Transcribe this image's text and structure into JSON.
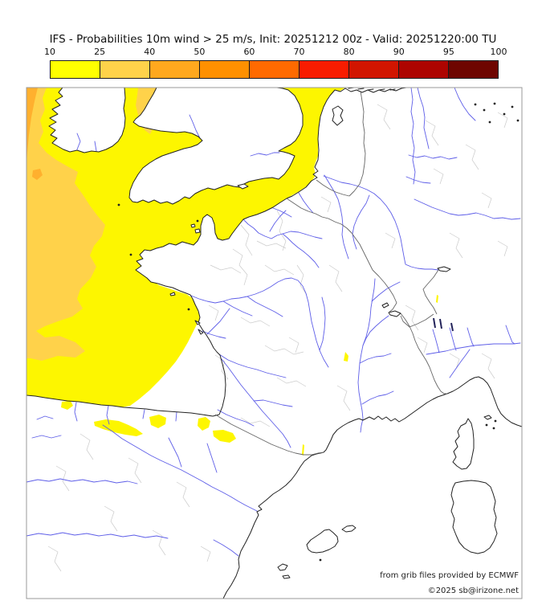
{
  "title": "IFS - Probabilities 10m wind > 25 m/s, Init: 20251212 00z - Valid: 20251220:00 TU",
  "colorbar": {
    "tick_labels": [
      "10",
      "25",
      "40",
      "50",
      "60",
      "70",
      "80",
      "90",
      "95",
      "100"
    ],
    "segments": [
      {
        "label": "10-25",
        "color": "#FFFF00"
      },
      {
        "label": "25-40",
        "color": "#FFD24A"
      },
      {
        "label": "40-50",
        "color": "#FFA81E"
      },
      {
        "label": "50-60",
        "color": "#FF9000"
      },
      {
        "label": "60-70",
        "color": "#FF6A00"
      },
      {
        "label": "70-80",
        "color": "#F81C00"
      },
      {
        "label": "80-90",
        "color": "#D11500"
      },
      {
        "label": "90-95",
        "color": "#AD0400"
      },
      {
        "label": "95-100",
        "color": "#6E0500"
      }
    ]
  },
  "map": {
    "attribution_line1": "from grib files provided by ECMWF",
    "attribution_line2": "©2025 sb@irizone.net",
    "colors": {
      "sea_prob_10_25": "#FDF600",
      "sea_prob_25_40": "#FFD24A",
      "sea_prob_40_50": "#FFB02E",
      "river": "#5E5EE8",
      "dark_lake": "#23235A",
      "coastline": "#222222",
      "country_border": "#666666",
      "admin_boundary": "#CBCBCB",
      "frame": "#999999",
      "land": "#FFFFFF"
    }
  },
  "chart_data": {
    "type": "heatmap",
    "title": "IFS - Probabilities 10m wind > 25 m/s, Init: 20251212 00z - Valid: 20251220:00 TU",
    "variable": "Probability of 10 m wind exceeding 25 m/s (%)",
    "model": "IFS (ECMWF)",
    "init": "20251212 00z",
    "valid": "20251220:00 TU",
    "legend_position": "top",
    "scale_bin_edges": [
      10,
      25,
      40,
      50,
      60,
      70,
      80,
      90,
      95,
      100
    ],
    "scale_colors": [
      "#FFFF00",
      "#FFD24A",
      "#FFA81E",
      "#FF9000",
      "#FF6A00",
      "#F81C00",
      "#D11500",
      "#AD0400",
      "#6E0500"
    ],
    "regions_depicted": [
      {
        "area": "Atlantic Ocean west of France, Bay of Biscay, English Channel, southern North Sea",
        "probability_pct": "10-25"
      },
      {
        "area": "Far-western Atlantic band along left map edge and south of Ireland",
        "probability_pct": "25-40"
      },
      {
        "area": "Extreme north-west corner of map",
        "probability_pct": "40-50"
      },
      {
        "area": "Irish Sea patch east of Ireland",
        "probability_pct": "25-40"
      },
      {
        "area": "Small patches along Cantabrian coast and Pyrenees foothills",
        "probability_pct": "10-25"
      },
      {
        "area": "Tiny spots in Rhône valley / Alps / Languedoc",
        "probability_pct": "10-25"
      },
      {
        "area": "Most land (Britain, France, Spain, Germany, Italy) and Mediterranean",
        "probability_pct": "<10"
      }
    ]
  }
}
